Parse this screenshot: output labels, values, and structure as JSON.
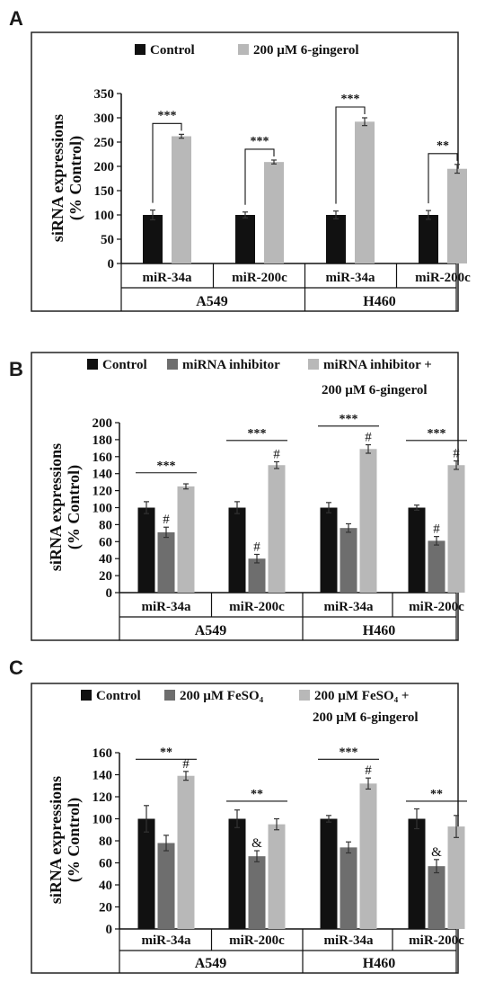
{
  "chart_data": [
    {
      "panel": "A",
      "type": "bar",
      "ylabel": "siRNA expressions (% Control)",
      "ylabel_lines": [
        "siRNA expressions",
        "(% Control)"
      ],
      "ylim": [
        0,
        350
      ],
      "yticks": [
        0,
        50,
        100,
        150,
        200,
        250,
        300,
        350
      ],
      "legend": [
        {
          "name": "Control",
          "color": "#111111"
        },
        {
          "name": "200 µM 6-gingerol",
          "color": "#b8b8b8"
        }
      ],
      "groups": [
        "A549",
        "H460"
      ],
      "categories": [
        "miR-34a",
        "miR-200c",
        "miR-34a",
        "miR-200c"
      ],
      "series": [
        {
          "name": "Control",
          "color": "#111111",
          "values": [
            100,
            100,
            100,
            100
          ],
          "errors": [
            10,
            6,
            8,
            9
          ]
        },
        {
          "name": "200 µM 6-gingerol",
          "color": "#b8b8b8",
          "values": [
            262,
            209,
            292,
            195
          ],
          "errors": [
            4,
            4,
            8,
            9
          ]
        }
      ],
      "significance": [
        {
          "category": 0,
          "label": "***",
          "style": "bracket",
          "from": 0,
          "to": 1
        },
        {
          "category": 1,
          "label": "***",
          "style": "bracket",
          "from": 0,
          "to": 1
        },
        {
          "category": 2,
          "label": "***",
          "style": "bracket",
          "from": 0,
          "to": 1
        },
        {
          "category": 3,
          "label": "**",
          "style": "bracket",
          "from": 0,
          "to": 1
        }
      ],
      "marks": []
    },
    {
      "panel": "B",
      "type": "bar",
      "ylabel": "siRNA expressions (% Control)",
      "ylabel_lines": [
        "siRNA expressions",
        "(% Control)"
      ],
      "ylim": [
        0,
        200
      ],
      "yticks": [
        0,
        20,
        40,
        60,
        80,
        100,
        120,
        140,
        160,
        180,
        200
      ],
      "legend": [
        {
          "name": "Control",
          "color": "#111111"
        },
        {
          "name": "miRNA inhibitor",
          "color": "#6e6e6e"
        },
        {
          "name": "miRNA inhibitor +",
          "color": "#b8b8b8"
        },
        {
          "name": "200 µM 6-gingerol",
          "color": null
        }
      ],
      "groups": [
        "A549",
        "H460"
      ],
      "categories": [
        "miR-34a",
        "miR-200c",
        "miR-34a",
        "miR-200c"
      ],
      "series": [
        {
          "name": "Control",
          "color": "#111111",
          "values": [
            100,
            100,
            100,
            100
          ],
          "errors": [
            7,
            7,
            6,
            3
          ]
        },
        {
          "name": "miRNA inhibitor",
          "color": "#6e6e6e",
          "values": [
            71,
            40,
            76,
            61
          ],
          "errors": [
            6,
            5,
            5,
            5
          ]
        },
        {
          "name": "miRNA inhibitor + 200 µM 6-gingerol",
          "color": "#b8b8b8",
          "values": [
            125,
            150,
            169,
            150
          ],
          "errors": [
            3,
            4,
            5,
            5
          ]
        }
      ],
      "significance": [
        {
          "category": 0,
          "label": "***",
          "style": "line",
          "y": 141
        },
        {
          "category": 1,
          "label": "***",
          "style": "line",
          "y": 179
        },
        {
          "category": 2,
          "label": "***",
          "style": "line",
          "y": 196
        },
        {
          "category": 3,
          "label": "***",
          "style": "line",
          "y": 179
        }
      ],
      "marks": [
        {
          "category": 0,
          "series": 1,
          "label": "#"
        },
        {
          "category": 1,
          "series": 1,
          "label": "#"
        },
        {
          "category": 3,
          "series": 1,
          "label": "#"
        },
        {
          "category": 1,
          "series": 2,
          "label": "#"
        },
        {
          "category": 2,
          "series": 2,
          "label": "#"
        },
        {
          "category": 3,
          "series": 2,
          "label": "#"
        }
      ]
    },
    {
      "panel": "C",
      "type": "bar",
      "ylabel": "siRNA expressions (% Control)",
      "ylabel_lines": [
        "siRNA expressions",
        "(% Control)"
      ],
      "ylim": [
        0,
        160
      ],
      "yticks": [
        0,
        20,
        40,
        60,
        80,
        100,
        120,
        140,
        160
      ],
      "legend": [
        {
          "name": "Control",
          "color": "#111111"
        },
        {
          "name": "200 µM FeSO₄",
          "color": "#6e6e6e"
        },
        {
          "name": "200 µM FeSO₄ +",
          "color": "#b8b8b8"
        },
        {
          "name": "200 µM 6-gingerol",
          "color": null
        }
      ],
      "groups": [
        "A549",
        "H460"
      ],
      "categories": [
        "miR-34a",
        "miR-200c",
        "miR-34a",
        "miR-200c"
      ],
      "series": [
        {
          "name": "Control",
          "color": "#111111",
          "values": [
            100,
            100,
            100,
            100
          ],
          "errors": [
            12,
            8,
            3,
            9
          ]
        },
        {
          "name": "200 µM FeSO₄",
          "color": "#6e6e6e",
          "values": [
            78,
            66,
            74,
            57
          ],
          "errors": [
            7,
            5,
            5,
            6
          ]
        },
        {
          "name": "200 µM FeSO₄ + 200 µM 6-gingerol",
          "color": "#b8b8b8",
          "values": [
            139,
            95,
            132,
            93
          ],
          "errors": [
            4,
            5,
            5,
            10
          ]
        }
      ],
      "significance": [
        {
          "category": 0,
          "label": "**",
          "style": "line",
          "y": 154
        },
        {
          "category": 1,
          "label": "**",
          "style": "line",
          "y": 116
        },
        {
          "category": 2,
          "label": "***",
          "style": "line",
          "y": 154
        },
        {
          "category": 3,
          "label": "**",
          "style": "line",
          "y": 116
        }
      ],
      "marks": [
        {
          "category": 1,
          "series": 1,
          "label": "&"
        },
        {
          "category": 3,
          "series": 1,
          "label": "&"
        },
        {
          "category": 0,
          "series": 2,
          "label": "#"
        },
        {
          "category": 2,
          "series": 2,
          "label": "#"
        }
      ]
    }
  ]
}
